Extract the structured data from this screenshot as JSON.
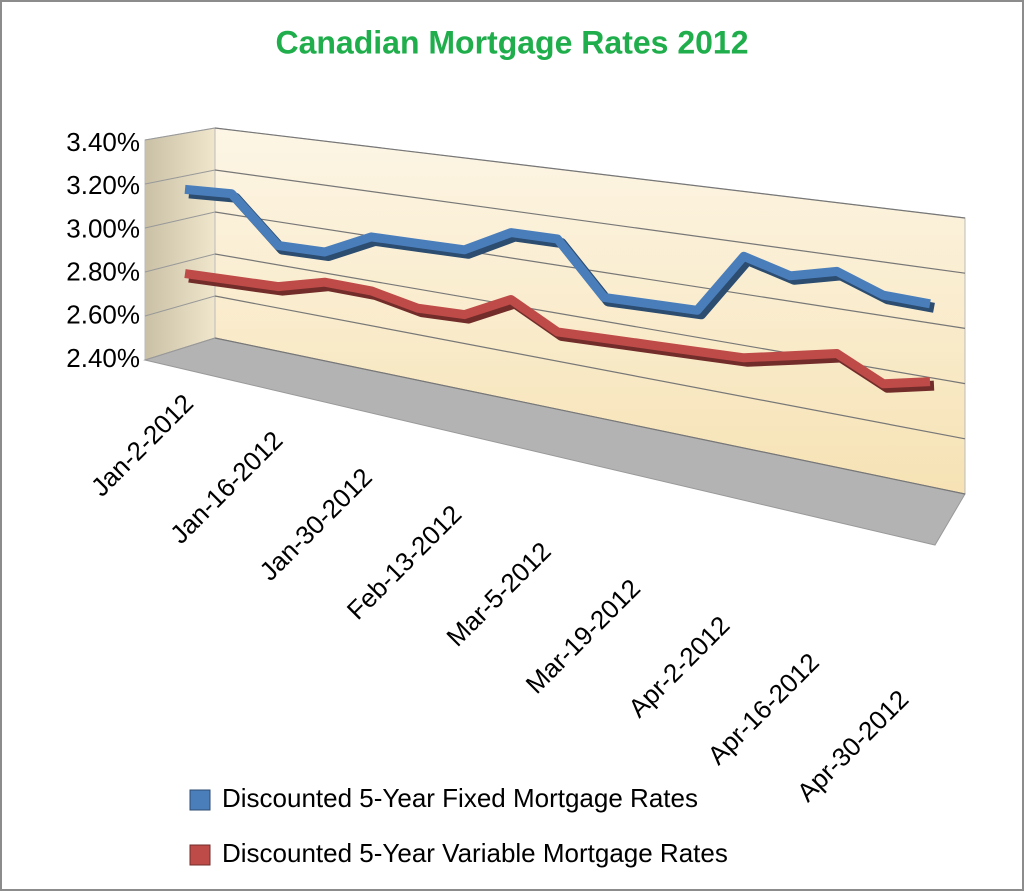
{
  "chart_data": {
    "type": "line",
    "title": "Canadian Mortgage Rates 2012",
    "categories": [
      "Jan-2-2012",
      null,
      "Jan-16-2012",
      null,
      "Jan-30-2012",
      null,
      "Feb-13-2012",
      null,
      "Mar-5-2012",
      null,
      "Mar-19-2012",
      null,
      "Apr-2-2012",
      null,
      "Apr-16-2012",
      null,
      "Apr-30-2012"
    ],
    "series": [
      {
        "name": "Discounted 5-Year Fixed Mortgage Rates",
        "color": "#4a7ebb",
        "values": [
          3.19,
          3.17,
          2.93,
          2.9,
          2.97,
          2.94,
          2.91,
          2.99,
          2.96,
          2.69,
          2.66,
          2.63,
          2.88,
          2.79,
          2.81,
          2.7,
          2.66
        ]
      },
      {
        "name": "Discounted 5-Year Variable Mortgage Rates",
        "color": "#be4b48",
        "values": [
          2.8,
          2.77,
          2.74,
          2.76,
          2.72,
          2.64,
          2.61,
          2.68,
          2.53,
          2.5,
          2.47,
          2.44,
          2.41,
          2.42,
          2.43,
          2.29,
          2.3
        ]
      }
    ],
    "ylim": [
      2.4,
      3.4
    ],
    "yticks": [
      {
        "value": 2.4,
        "label": "2.40%"
      },
      {
        "value": 2.6,
        "label": "2.60%"
      },
      {
        "value": 2.8,
        "label": "2.80%"
      },
      {
        "value": 3.0,
        "label": "3.00%"
      },
      {
        "value": 3.2,
        "label": "3.20%"
      },
      {
        "value": 3.4,
        "label": "3.40%"
      }
    ],
    "grid": true,
    "legend": "bottom"
  }
}
